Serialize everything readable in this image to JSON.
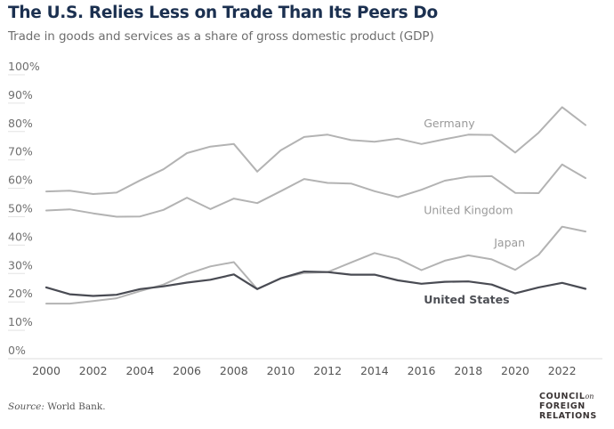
{
  "header": {
    "title": "The U.S. Relies Less on Trade Than Its Peers Do",
    "subtitle": "Trade in goods and services as a share of gross domestic product (GDP)"
  },
  "footer": {
    "source_prefix": "Source:",
    "source_text": " World Bank.",
    "logo_line1": "COUNCIL",
    "logo_on": "on",
    "logo_line2": "FOREIGN",
    "logo_line3": "RELATIONS"
  },
  "chart_data": {
    "type": "line",
    "title": "The U.S. Relies Less on Trade Than Its Peers Do",
    "subtitle": "Trade in goods and services as a share of gross domestic product (GDP)",
    "xlabel": "",
    "ylabel": "",
    "x": [
      2000,
      2001,
      2002,
      2003,
      2004,
      2005,
      2006,
      2007,
      2008,
      2009,
      2010,
      2011,
      2012,
      2013,
      2014,
      2015,
      2016,
      2017,
      2018,
      2019,
      2020,
      2021,
      2022,
      2023
    ],
    "xlim": [
      2000,
      2023
    ],
    "ylim": [
      0,
      100
    ],
    "x_ticks": [
      "2000",
      "2002",
      "2004",
      "2006",
      "2008",
      "2010",
      "2012",
      "2014",
      "2016",
      "2018",
      "2020",
      "2022"
    ],
    "y_ticks": [
      "0%",
      "10%",
      "20%",
      "30%",
      "40%",
      "50%",
      "60%",
      "70%",
      "80%",
      "90%",
      "100%"
    ],
    "grid": "short tick underlines at y labels; baseline at 0%",
    "legend": "direct labels on lines",
    "series": [
      {
        "name": "Germany",
        "color": "#b3b3b3",
        "values": [
          58.9,
          59.2,
          58.0,
          58.5,
          62.8,
          66.7,
          72.4,
          74.7,
          75.6,
          65.9,
          73.4,
          78.1,
          78.9,
          77.0,
          76.4,
          77.5,
          75.6,
          77.3,
          78.9,
          78.8,
          72.6,
          79.6,
          88.6,
          82.3
        ]
      },
      {
        "name": "United Kingdom",
        "color": "#b3b3b3",
        "values": [
          52.2,
          52.6,
          51.2,
          50.0,
          50.1,
          52.4,
          56.7,
          52.7,
          56.4,
          54.8,
          59.0,
          63.3,
          61.9,
          61.7,
          59.0,
          56.9,
          59.5,
          62.7,
          64.1,
          64.3,
          58.4,
          58.3,
          68.4,
          63.6
        ]
      },
      {
        "name": "Japan",
        "color": "#b3b3b3",
        "values": [
          19.4,
          19.4,
          20.3,
          21.3,
          23.8,
          26.1,
          29.8,
          32.5,
          34.0,
          24.5,
          28.3,
          30.2,
          30.5,
          33.9,
          37.2,
          35.2,
          31.2,
          34.5,
          36.4,
          35.0,
          31.3,
          36.6,
          46.5,
          44.8
        ]
      },
      {
        "name": "United States",
        "color": "#494b53",
        "values": [
          25.1,
          22.7,
          22.1,
          22.5,
          24.5,
          25.5,
          26.8,
          27.8,
          29.7,
          24.5,
          28.3,
          30.7,
          30.5,
          29.6,
          29.6,
          27.6,
          26.4,
          27.1,
          27.2,
          26.1,
          23.0,
          25.1,
          26.7,
          24.6
        ]
      }
    ]
  }
}
